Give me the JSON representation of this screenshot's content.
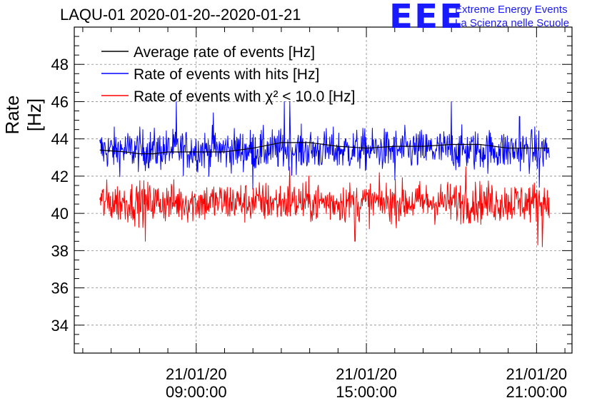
{
  "title": "LAQU-01 2020-01-20--2020-01-21",
  "logo": {
    "mark": "EEE",
    "line1": "Extreme Energy Events",
    "line2": "La Scienza nelle Scuole",
    "color": "#1a1aff"
  },
  "chart_data": {
    "type": "line",
    "ylabel": "Rate [Hz]",
    "ylim": [
      32.5,
      50
    ],
    "yticks": [
      34,
      36,
      38,
      40,
      42,
      44,
      46,
      48
    ],
    "xlim_hours": [
      4.7,
      22.25
    ],
    "xticks": [
      {
        "hour": 9,
        "date": "21/01/20",
        "time": "09:00:00"
      },
      {
        "hour": 15,
        "date": "21/01/20",
        "time": "15:00:00"
      },
      {
        "hour": 21,
        "date": "21/01/20",
        "time": "21:00:00"
      }
    ],
    "grid": true,
    "legend_position": "top-left",
    "series": [
      {
        "name": "Average rate of events [Hz]",
        "color": "#000000",
        "x": [
          5.6,
          6.5,
          7.0,
          7.5,
          8.0,
          9.0,
          10.0,
          11.0,
          12.0,
          13.0,
          14.0,
          15.0,
          16.0,
          17.0,
          18.0,
          19.0,
          20.0,
          21.0,
          21.45
        ],
        "values": [
          43.4,
          43.3,
          43.2,
          43.2,
          43.3,
          43.3,
          43.3,
          43.5,
          43.8,
          43.8,
          43.6,
          43.5,
          43.6,
          43.6,
          43.7,
          43.7,
          43.5,
          43.5,
          43.5
        ]
      },
      {
        "name": "Rate of events with hits [Hz]",
        "color": "#0000ff",
        "mean": 43.4,
        "noise": 0.75,
        "x_range": [
          5.6,
          21.45
        ],
        "points": 900,
        "peaks": [
          [
            8.3,
            46.0
          ],
          [
            12.1,
            46.0
          ],
          [
            12.3,
            46.0
          ],
          [
            18.0,
            46.0
          ],
          [
            9.6,
            45.4
          ],
          [
            20.4,
            45.2
          ],
          [
            11.0,
            41.3
          ],
          [
            16.0,
            41.8
          ],
          [
            21.1,
            41.4
          ]
        ]
      },
      {
        "name": "Rate of events with χ² < 10.0 [Hz]",
        "color": "#ff0000",
        "mean": 40.6,
        "noise": 0.75,
        "x_range": [
          5.6,
          21.45
        ],
        "points": 900,
        "peaks": [
          [
            12.3,
            42.5
          ],
          [
            18.5,
            42.5
          ],
          [
            7.2,
            38.5
          ],
          [
            14.6,
            38.5
          ],
          [
            21.05,
            38.3
          ],
          [
            21.2,
            38.2
          ]
        ]
      }
    ]
  }
}
